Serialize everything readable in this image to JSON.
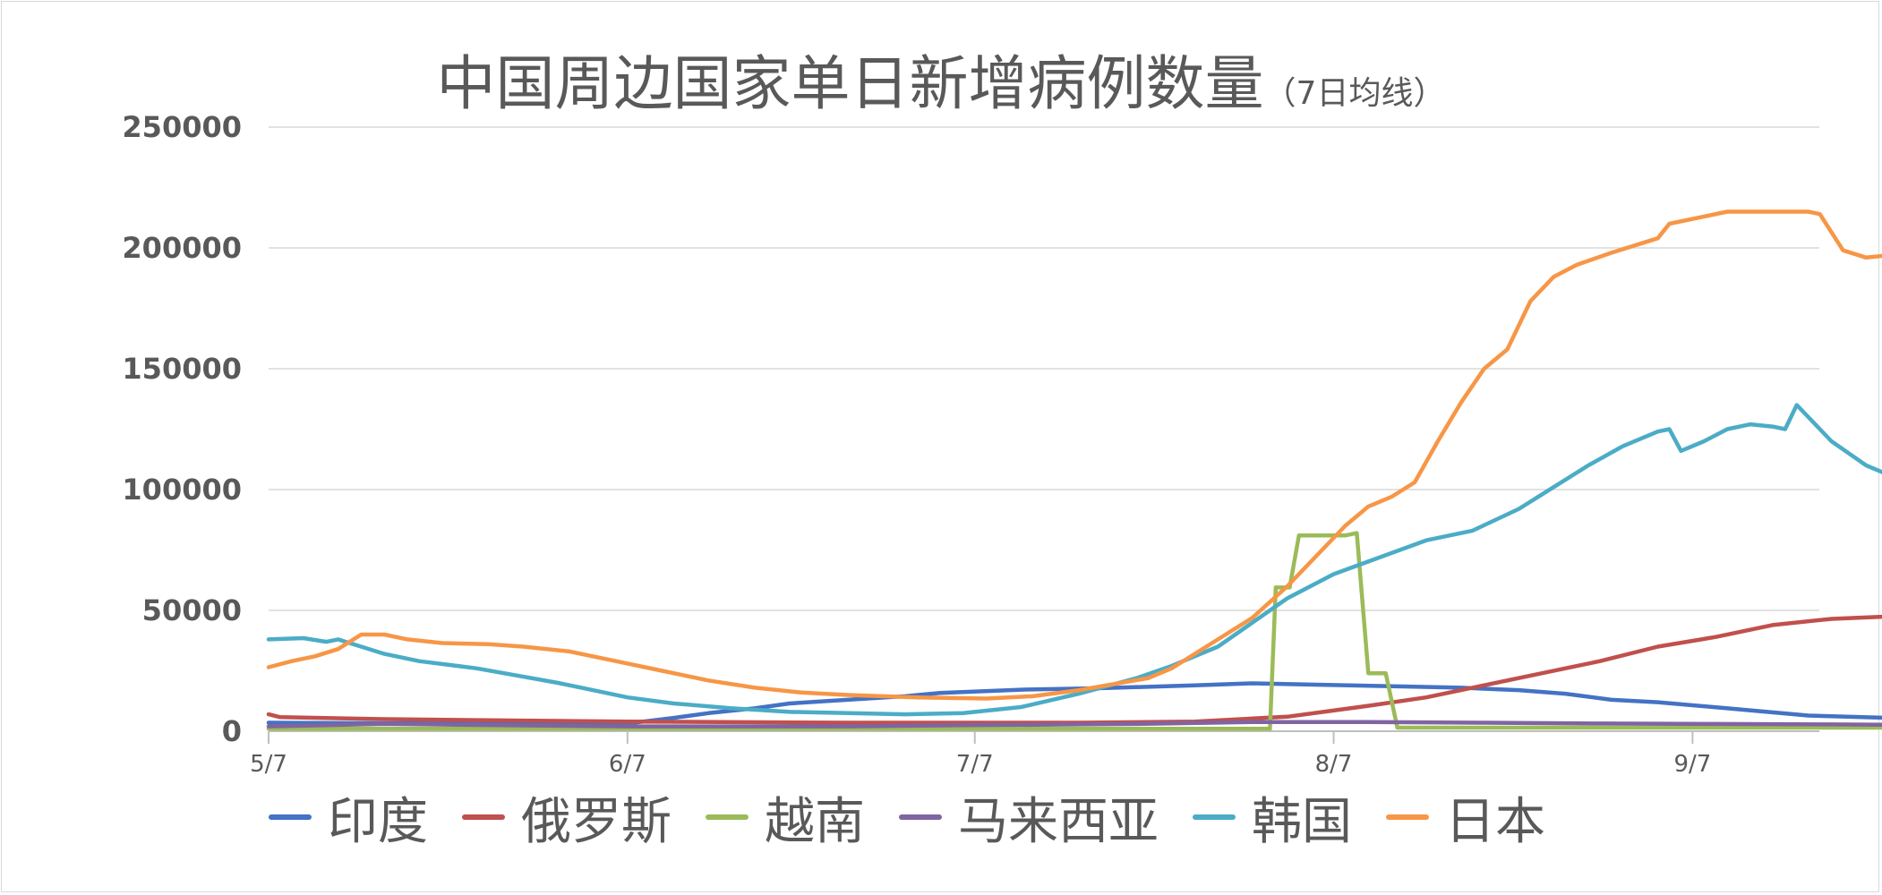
{
  "chart_data": {
    "type": "line",
    "title": "中国周边国家单日新增病例数量",
    "subtitle": "（7日均线）",
    "xlabel": "",
    "ylabel": "",
    "ylim": [
      0,
      250000
    ],
    "yticks": [
      0,
      50000,
      100000,
      150000,
      200000,
      250000
    ],
    "ytick_labels": [
      "0",
      "50000",
      "100000",
      "150000",
      "200000",
      "250000"
    ],
    "x_start_day": 0,
    "x_end_day": 134,
    "xticks": [
      0,
      31,
      61,
      92,
      123
    ],
    "xtick_labels": [
      "5/7",
      "6/7",
      "7/7",
      "8/7",
      "9/7"
    ],
    "grid": true,
    "legend_position": "bottom",
    "series": [
      {
        "name": "印度",
        "color": "#4472C4",
        "points": [
          [
            0,
            3500
          ],
          [
            15,
            3200
          ],
          [
            25,
            3100
          ],
          [
            31,
            3200
          ],
          [
            35,
            5500
          ],
          [
            38,
            7500
          ],
          [
            42,
            9500
          ],
          [
            45,
            11500
          ],
          [
            50,
            13000
          ],
          [
            55,
            14500
          ],
          [
            58,
            15800
          ],
          [
            65,
            17200
          ],
          [
            72,
            17800
          ],
          [
            80,
            19000
          ],
          [
            85,
            19800
          ],
          [
            90,
            19300
          ],
          [
            98,
            18500
          ],
          [
            103,
            18000
          ],
          [
            108,
            17000
          ],
          [
            112,
            15500
          ],
          [
            116,
            13000
          ],
          [
            120,
            12000
          ],
          [
            126,
            9500
          ],
          [
            133,
            6500
          ],
          [
            140,
            5500
          ],
          [
            146,
            5500
          ],
          [
            150,
            5300
          ]
        ]
      },
      {
        "name": "俄罗斯",
        "color": "#C0504D",
        "points": [
          [
            0,
            7000
          ],
          [
            1,
            5800
          ],
          [
            10,
            5000
          ],
          [
            20,
            4500
          ],
          [
            31,
            4000
          ],
          [
            50,
            3500
          ],
          [
            70,
            3500
          ],
          [
            80,
            4000
          ],
          [
            88,
            6000
          ],
          [
            95,
            10500
          ],
          [
            100,
            14000
          ],
          [
            105,
            19000
          ],
          [
            110,
            24000
          ],
          [
            115,
            29000
          ],
          [
            120,
            35000
          ],
          [
            125,
            39000
          ],
          [
            130,
            44000
          ],
          [
            135,
            46500
          ],
          [
            140,
            47500
          ],
          [
            145,
            50000
          ],
          [
            148,
            52500
          ],
          [
            150,
            54000
          ],
          [
            151,
            54000
          ]
        ]
      },
      {
        "name": "越南",
        "color": "#9BBB59",
        "points": [
          [
            0,
            1000
          ],
          [
            50,
            1000
          ],
          [
            86,
            1000
          ],
          [
            86.5,
            1000
          ],
          [
            87,
            59500
          ],
          [
            88.2,
            59500
          ],
          [
            89,
            81000
          ],
          [
            93,
            81000
          ],
          [
            94,
            82000
          ],
          [
            95,
            24000
          ],
          [
            96.5,
            24000
          ],
          [
            97.5,
            1500
          ],
          [
            110,
            1500
          ],
          [
            140,
            1500
          ],
          [
            151,
            1500
          ]
        ]
      },
      {
        "name": "马来西亚",
        "color": "#8064A2",
        "points": [
          [
            0,
            2000
          ],
          [
            10,
            3000
          ],
          [
            20,
            2500
          ],
          [
            31,
            2000
          ],
          [
            50,
            2000
          ],
          [
            60,
            2500
          ],
          [
            75,
            3000
          ],
          [
            85,
            3800
          ],
          [
            95,
            3800
          ],
          [
            105,
            3500
          ],
          [
            115,
            3200
          ],
          [
            125,
            3000
          ],
          [
            135,
            2800
          ],
          [
            145,
            2500
          ],
          [
            151,
            2300
          ]
        ]
      },
      {
        "name": "韩国",
        "color": "#4BACC6",
        "points": [
          [
            0,
            38000
          ],
          [
            3,
            38500
          ],
          [
            5,
            37000
          ],
          [
            6,
            38000
          ],
          [
            8,
            35000
          ],
          [
            10,
            32000
          ],
          [
            13,
            29000
          ],
          [
            18,
            26000
          ],
          [
            25,
            20000
          ],
          [
            28,
            17000
          ],
          [
            31,
            14000
          ],
          [
            35,
            11500
          ],
          [
            40,
            9500
          ],
          [
            45,
            8000
          ],
          [
            55,
            7000
          ],
          [
            60,
            7500
          ],
          [
            65,
            10000
          ],
          [
            70,
            15500
          ],
          [
            75,
            22000
          ],
          [
            78,
            27000
          ],
          [
            82,
            35000
          ],
          [
            85,
            45000
          ],
          [
            88,
            55000
          ],
          [
            92,
            65000
          ],
          [
            96,
            72000
          ],
          [
            100,
            79000
          ],
          [
            104,
            83000
          ],
          [
            108,
            92000
          ],
          [
            111,
            101000
          ],
          [
            114,
            110000
          ],
          [
            117,
            118000
          ],
          [
            120,
            124000
          ],
          [
            121,
            125000
          ],
          [
            122,
            116000
          ],
          [
            124,
            120000
          ],
          [
            126,
            125000
          ],
          [
            128,
            127000
          ],
          [
            130,
            126000
          ],
          [
            131,
            125000
          ],
          [
            132,
            135000
          ],
          [
            133,
            130000
          ],
          [
            135,
            120000
          ],
          [
            138,
            110000
          ],
          [
            141,
            104000
          ],
          [
            144,
            92000
          ],
          [
            148,
            86000
          ],
          [
            151,
            82000
          ],
          [
            154,
            78000
          ],
          [
            156,
            73000
          ],
          [
            158,
            64000
          ],
          [
            160,
            63000
          ],
          [
            161,
            56000
          ],
          [
            162,
            57000
          ],
          [
            164,
            57000
          ],
          [
            165,
            55000
          ],
          [
            168,
            55000
          ],
          [
            169,
            56000
          ],
          [
            171,
            53000
          ],
          [
            172,
            51000
          ],
          [
            174,
            45000
          ],
          [
            176,
            40000
          ],
          [
            178,
            36000
          ]
        ]
      },
      {
        "name": "日本",
        "color": "#F79646",
        "points": [
          [
            0,
            26500
          ],
          [
            2,
            29000
          ],
          [
            4,
            31000
          ],
          [
            6,
            34000
          ],
          [
            7,
            37000
          ],
          [
            8,
            40000
          ],
          [
            10,
            40000
          ],
          [
            12,
            38000
          ],
          [
            15,
            36500
          ],
          [
            19,
            36000
          ],
          [
            22,
            35000
          ],
          [
            26,
            33000
          ],
          [
            30,
            29000
          ],
          [
            34,
            25000
          ],
          [
            38,
            21000
          ],
          [
            42,
            18000
          ],
          [
            46,
            16000
          ],
          [
            50,
            15000
          ],
          [
            56,
            14000
          ],
          [
            62,
            13500
          ],
          [
            66,
            14500
          ],
          [
            70,
            17000
          ],
          [
            73,
            19500
          ],
          [
            76,
            22000
          ],
          [
            78,
            26000
          ],
          [
            80,
            32000
          ],
          [
            82,
            38000
          ],
          [
            85,
            47000
          ],
          [
            88,
            60000
          ],
          [
            91,
            75000
          ],
          [
            93,
            85000
          ],
          [
            95,
            93000
          ],
          [
            97,
            97000
          ],
          [
            99,
            103000
          ],
          [
            101,
            120000
          ],
          [
            103,
            136000
          ],
          [
            105,
            150000
          ],
          [
            107,
            158000
          ],
          [
            109,
            178000
          ],
          [
            111,
            188000
          ],
          [
            113,
            193000
          ],
          [
            116,
            198000
          ],
          [
            118,
            201000
          ],
          [
            120,
            204000
          ],
          [
            121,
            210000
          ],
          [
            124,
            213000
          ],
          [
            126,
            215000
          ],
          [
            128,
            215000
          ],
          [
            131,
            215000
          ],
          [
            133,
            215000
          ],
          [
            134,
            214000
          ],
          [
            136,
            199000
          ],
          [
            138,
            196000
          ],
          [
            140,
            197000
          ],
          [
            141,
            190000
          ],
          [
            143,
            187000
          ],
          [
            145,
            190000
          ],
          [
            146,
            200000
          ],
          [
            148,
            212000
          ],
          [
            149,
            219000
          ],
          [
            151,
            220000
          ],
          [
            153,
            226000
          ],
          [
            154,
            227000
          ],
          [
            156,
            222000
          ],
          [
            158,
            208000
          ],
          [
            160,
            192000
          ],
          [
            162,
            185000
          ],
          [
            164,
            175000
          ],
          [
            166,
            160000
          ],
          [
            168,
            145000
          ],
          [
            170,
            133000
          ],
          [
            172,
            128000
          ],
          [
            174,
            121000
          ],
          [
            176,
            113000
          ],
          [
            178,
            110000
          ],
          [
            180,
            104000
          ],
          [
            182,
            100000
          ],
          [
            184,
            94000
          ],
          [
            186,
            88000
          ],
          [
            188,
            81000
          ],
          [
            190,
            78000
          ],
          [
            192,
            74000
          ],
          [
            194,
            64000
          ],
          [
            196,
            62000
          ],
          [
            197,
            61000
          ]
        ]
      }
    ]
  }
}
